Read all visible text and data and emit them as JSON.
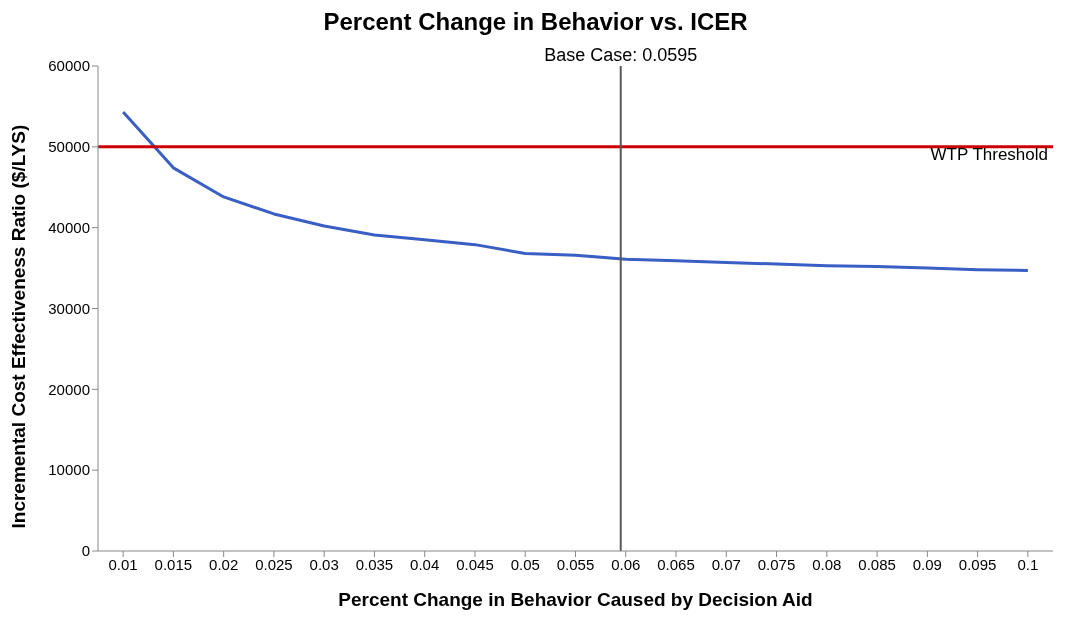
{
  "chart_data": {
    "type": "line",
    "title": "Percent Change in Behavior vs. ICER",
    "xlabel": "Percent Change in Behavior Caused by Decision Aid",
    "ylabel": "Incremental Cost Effectiveness Ratio ($/LYS)",
    "x": [
      0.01,
      0.015,
      0.02,
      0.025,
      0.03,
      0.035,
      0.04,
      0.045,
      0.05,
      0.055,
      0.06,
      0.065,
      0.07,
      0.075,
      0.08,
      0.085,
      0.09,
      0.095,
      0.1
    ],
    "series": [
      {
        "color": "#3a5fc4",
        "values": [
          54300,
          47400,
          43800,
          41700,
          40200,
          39100,
          38500,
          37900,
          36800,
          36600,
          36100,
          35900,
          35700,
          35500,
          35300,
          35200,
          35000,
          34800,
          34700
        ]
      }
    ],
    "xlim": [
      0.0075,
      0.1025
    ],
    "xticks": [
      0.01,
      0.015,
      0.02,
      0.025,
      0.03,
      0.035,
      0.04,
      0.045,
      0.05,
      0.055,
      0.06,
      0.065,
      0.07,
      0.075,
      0.08,
      0.085,
      0.09,
      0.095,
      0.1
    ],
    "ylim": [
      0,
      60000
    ],
    "yticks": [
      0,
      10000,
      20000,
      30000,
      40000,
      50000,
      60000
    ],
    "ref_lines": [
      {
        "axis": "y",
        "value": 50000,
        "label": "WTP Threshold",
        "color": "#cc0000"
      },
      {
        "axis": "x",
        "value": 0.0595,
        "label": "Base Case: 0.0595",
        "color": "#595959"
      }
    ],
    "grid": false,
    "legend": false,
    "marker": "none",
    "line_style": "solid"
  }
}
